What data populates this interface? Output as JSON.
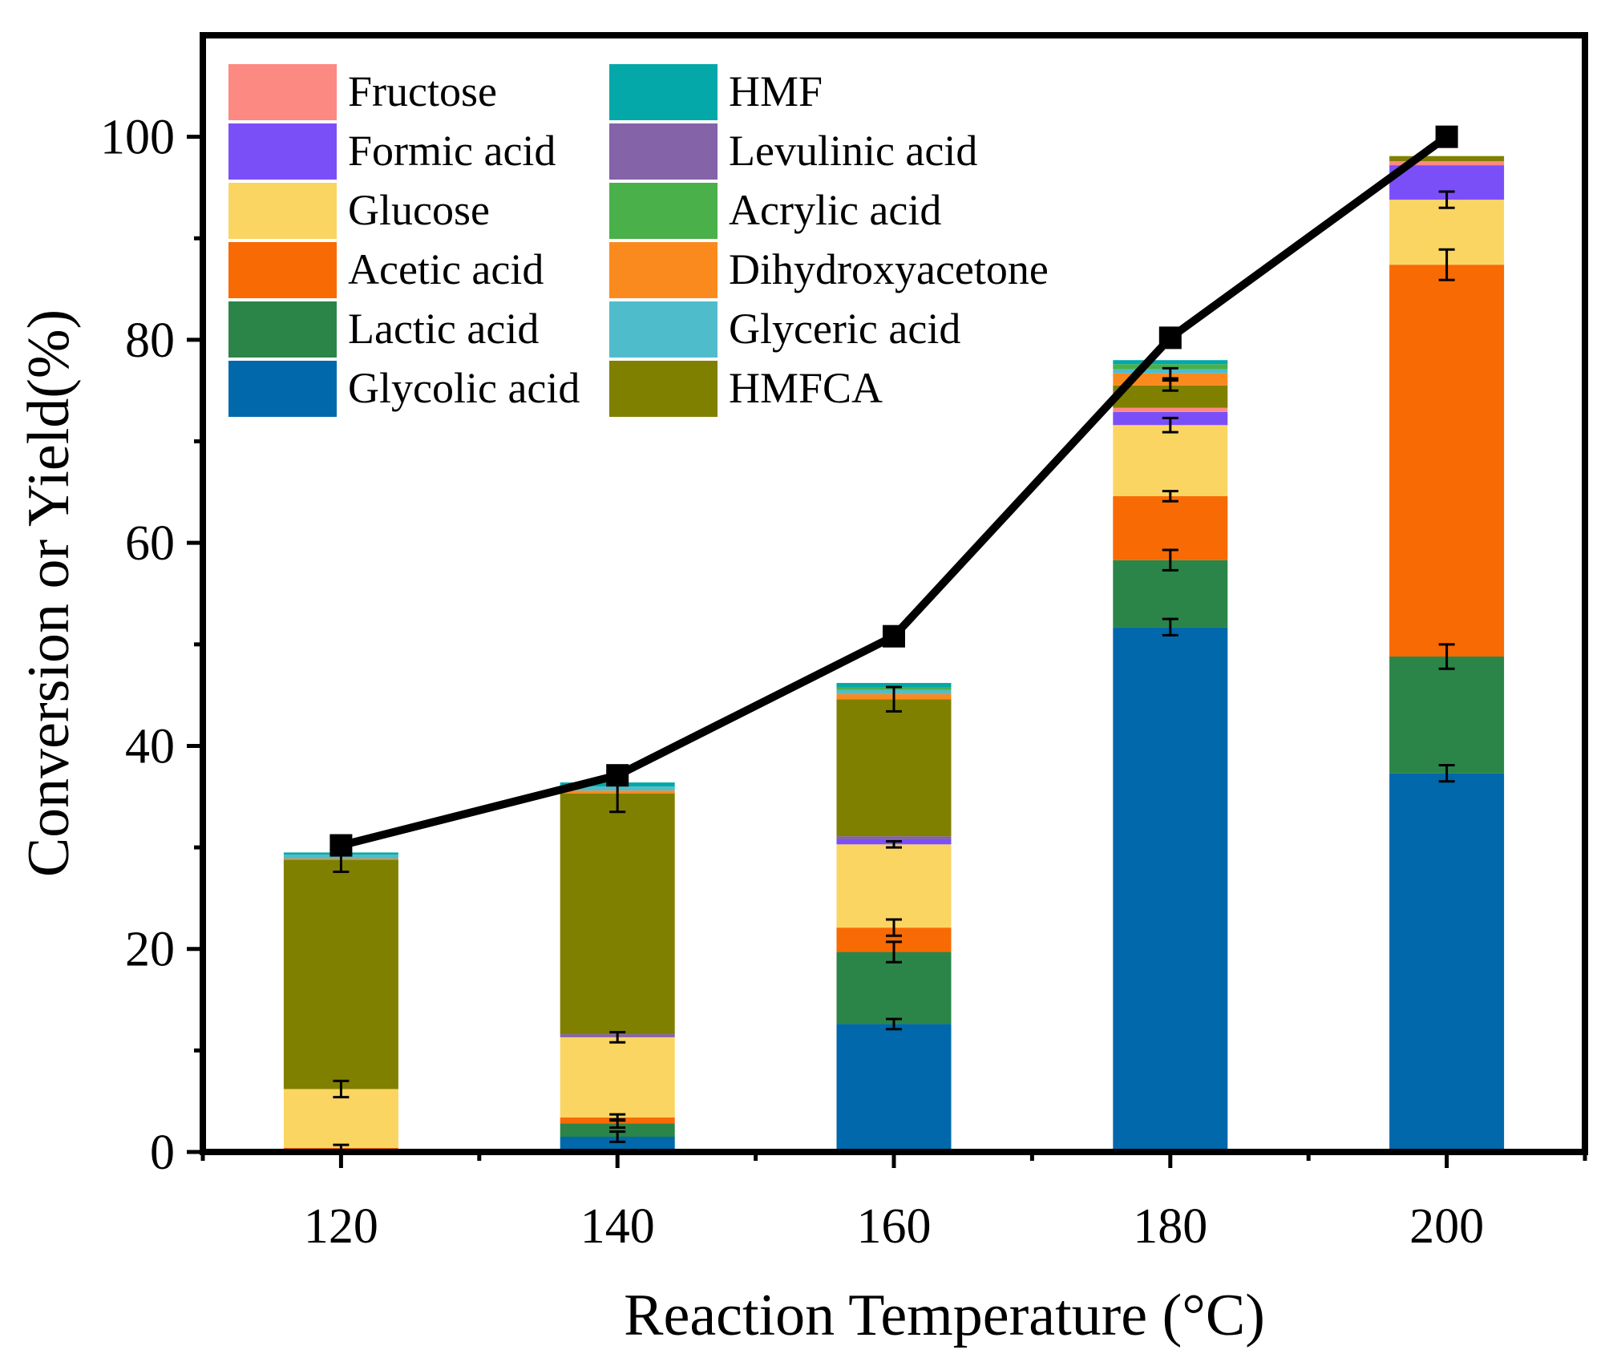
{
  "chart_data": {
    "type": "bar",
    "stacked": true,
    "xlabel": "Reaction Temperature (°C)",
    "ylabel": "Conversion or Yield(%)",
    "ylim": [
      0,
      110
    ],
    "y_ticks": [
      0,
      20,
      40,
      60,
      80,
      100
    ],
    "categories": [
      "120",
      "140",
      "160",
      "180",
      "200"
    ],
    "series": [
      {
        "name": "Glycolic acid",
        "color": "#0068ab",
        "values": [
          0,
          1.5,
          12.6,
          51.7,
          37.3
        ],
        "errors": [
          0,
          0.5,
          0.5,
          0.8,
          0.8
        ]
      },
      {
        "name": "Lactic acid",
        "color": "#2b8548",
        "values": [
          0,
          1.3,
          7.1,
          6.6,
          11.5
        ],
        "errors": [
          0,
          0.4,
          1.0,
          1.0,
          1.2
        ]
      },
      {
        "name": "Acetic acid",
        "color": "#f86a03",
        "values": [
          0.4,
          0.6,
          2.4,
          6.3,
          38.6
        ],
        "errors": [
          0.3,
          0.3,
          0.8,
          0.5,
          1.5
        ]
      },
      {
        "name": "Glucose",
        "color": "#fbd562",
        "values": [
          5.8,
          7.9,
          8.2,
          7.0,
          6.4
        ],
        "errors": [
          0.8,
          0.5,
          0.3,
          0.7,
          0.8
        ]
      },
      {
        "name": "Formic acid",
        "color": "#7b4ff8",
        "values": [
          0,
          0,
          0.5,
          1.3,
          3.4
        ],
        "errors": [
          0,
          0,
          0,
          0,
          0
        ]
      },
      {
        "name": "Fructose",
        "color": "#fd8983",
        "values": [
          0,
          0,
          0,
          0.4,
          0.4
        ],
        "errors": [
          0,
          0,
          0,
          0,
          0
        ]
      },
      {
        "name": "Levulinic acid",
        "color": "#8463a9",
        "values": [
          0,
          0.3,
          0.3,
          0,
          0
        ],
        "errors": [
          0,
          0,
          0,
          0,
          0
        ]
      },
      {
        "name": "HMFCA",
        "color": "#808000",
        "values": [
          22.6,
          23.7,
          13.5,
          2.2,
          0.5
        ],
        "errors": [
          1.2,
          1.8,
          1.2,
          0.5,
          0
        ]
      },
      {
        "name": "Dihydroxyacetone",
        "color": "#fb8a1e",
        "values": [
          0.1,
          0.3,
          0.5,
          1.2,
          0
        ],
        "errors": [
          0,
          0,
          0,
          0.5,
          0
        ]
      },
      {
        "name": "Glyceric acid",
        "color": "#4fbccc",
        "values": [
          0.4,
          0.4,
          0.4,
          0.4,
          0
        ],
        "errors": [
          0,
          0,
          0,
          0,
          0
        ]
      },
      {
        "name": "Acrylic acid",
        "color": "#4ab04a",
        "values": [
          0,
          0,
          0.3,
          0.5,
          0
        ],
        "errors": [
          0,
          0,
          0,
          0,
          0
        ]
      },
      {
        "name": "HMF",
        "color": "#04a8a8",
        "values": [
          0.2,
          0.4,
          0.4,
          0.4,
          0
        ],
        "errors": [
          0,
          0,
          0,
          0,
          0
        ]
      }
    ],
    "line": {
      "name": "Conversion",
      "color": "#000000",
      "values": [
        30.2,
        37.1,
        50.8,
        80.2,
        100
      ]
    },
    "legend": {
      "position": "top-left",
      "columns": [
        [
          "Fructose",
          "Formic acid",
          "Glucose",
          "Acetic acid",
          "Lactic acid",
          "Glycolic acid"
        ],
        [
          "HMF",
          "Levulinic acid",
          "Acrylic acid",
          "Dihydroxyacetone",
          "Glyceric acid",
          "HMFCA"
        ]
      ]
    },
    "grid": false
  }
}
